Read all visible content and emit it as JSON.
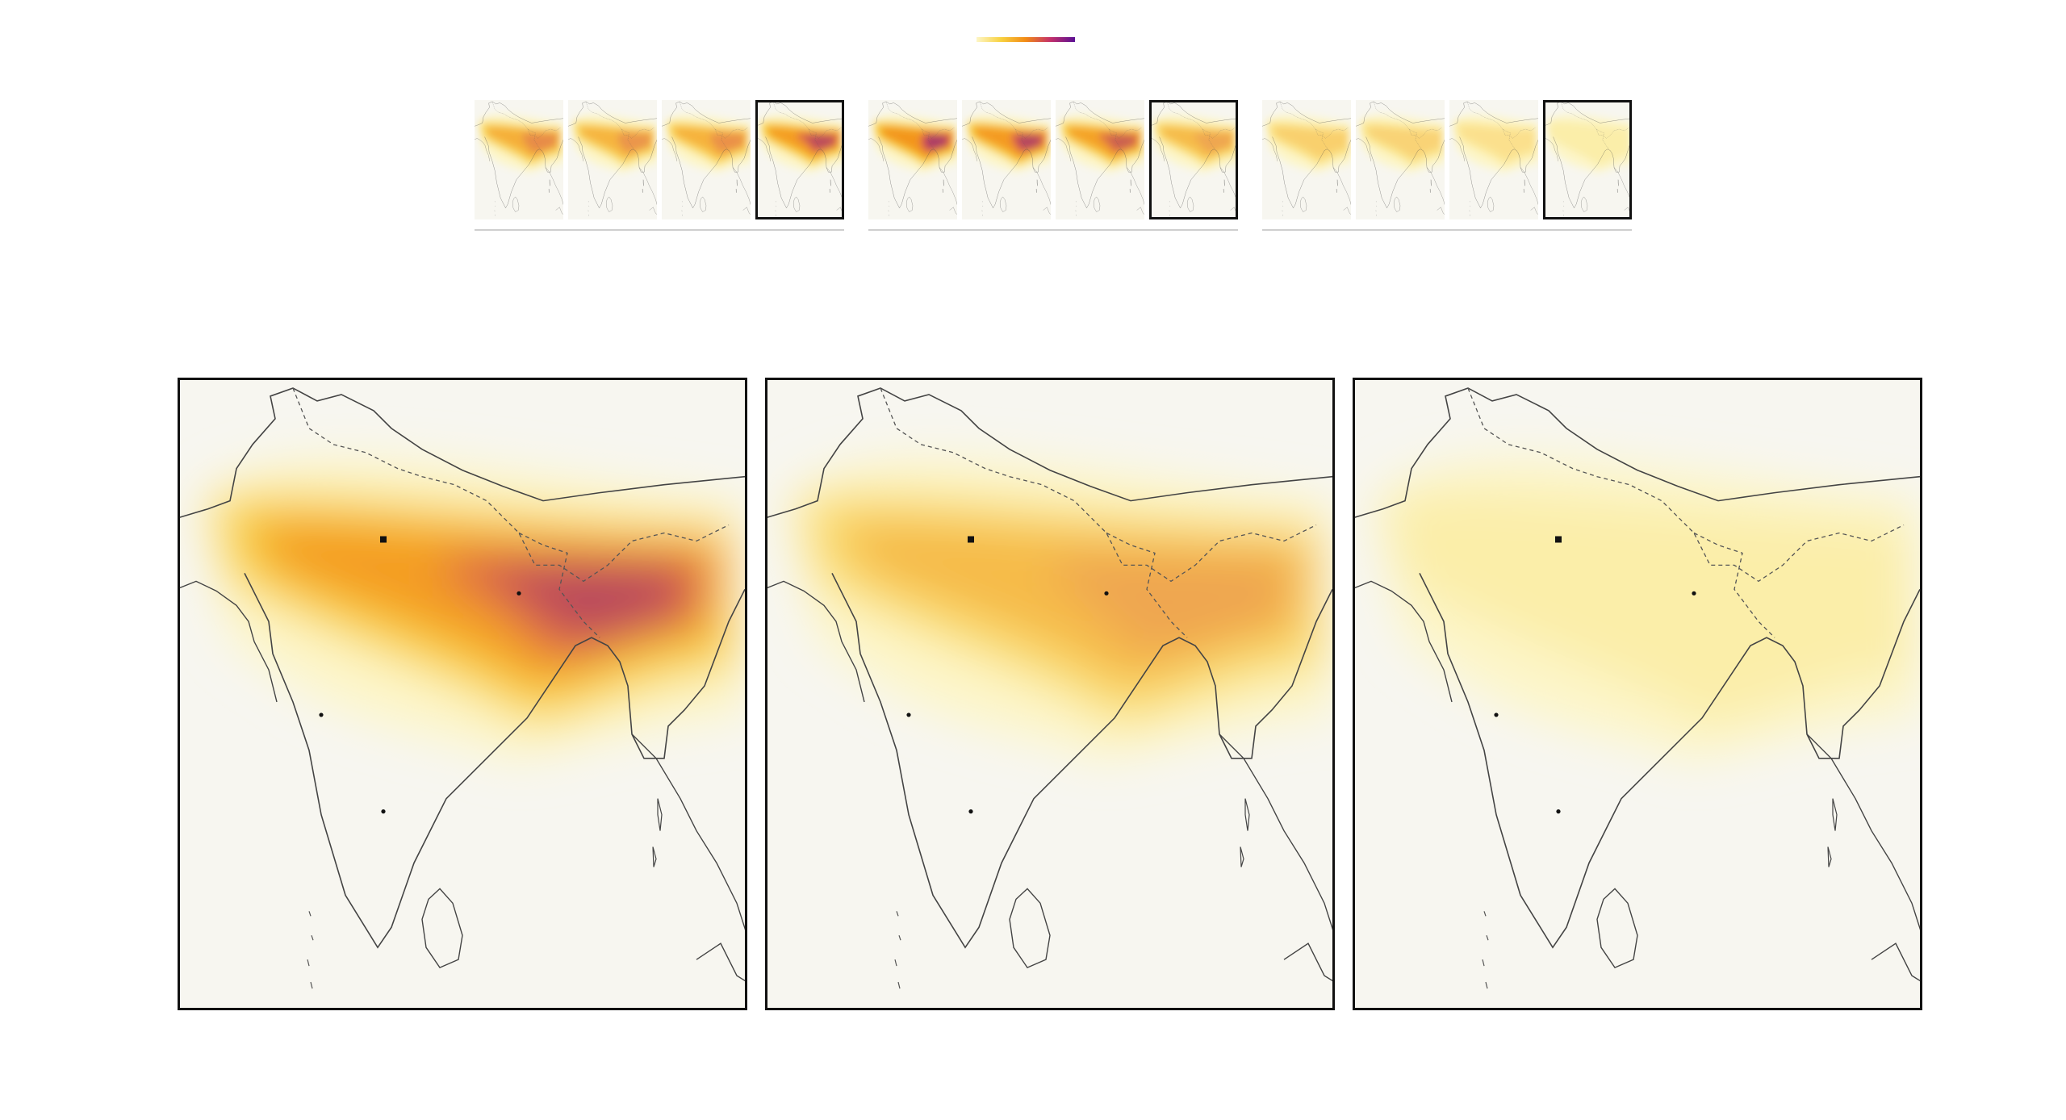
{
  "legend": {
    "colors": [
      "#fdf6c6",
      "#f8d13f",
      "#f28b16",
      "#c4306a",
      "#5a0f94"
    ]
  },
  "thumbnail_groups": [
    {
      "panels": [
        {
          "intensity": 0.72,
          "east_bias": 0.6
        },
        {
          "intensity": 0.68,
          "east_bias": 0.5
        },
        {
          "intensity": 0.7,
          "east_bias": 0.55
        },
        {
          "intensity": 0.92,
          "east_bias": 1.0,
          "selected": true
        }
      ]
    },
    {
      "panels": [
        {
          "intensity": 1.0,
          "east_bias": 0.2
        },
        {
          "intensity": 0.95,
          "east_bias": 0.5
        },
        {
          "intensity": 0.85,
          "east_bias": 0.9
        },
        {
          "intensity": 0.62,
          "east_bias": 0.8,
          "selected": true
        }
      ]
    },
    {
      "panels": [
        {
          "intensity": 0.45,
          "east_bias": 0.6
        },
        {
          "intensity": 0.42,
          "east_bias": 0.5
        },
        {
          "intensity": 0.32,
          "east_bias": 0.5
        },
        {
          "intensity": 0.22,
          "east_bias": 0.6,
          "selected": true
        }
      ]
    }
  ],
  "maps": [
    {
      "intensity": 0.92,
      "east_bias": 1.0
    },
    {
      "intensity": 0.62,
      "east_bias": 0.8
    },
    {
      "intensity": 0.22,
      "east_bias": 0.6
    }
  ],
  "map_markers": [
    {
      "type": "capital-square"
    },
    {
      "type": "city-dot"
    },
    {
      "type": "city-dot"
    },
    {
      "type": "city-dot"
    }
  ]
}
